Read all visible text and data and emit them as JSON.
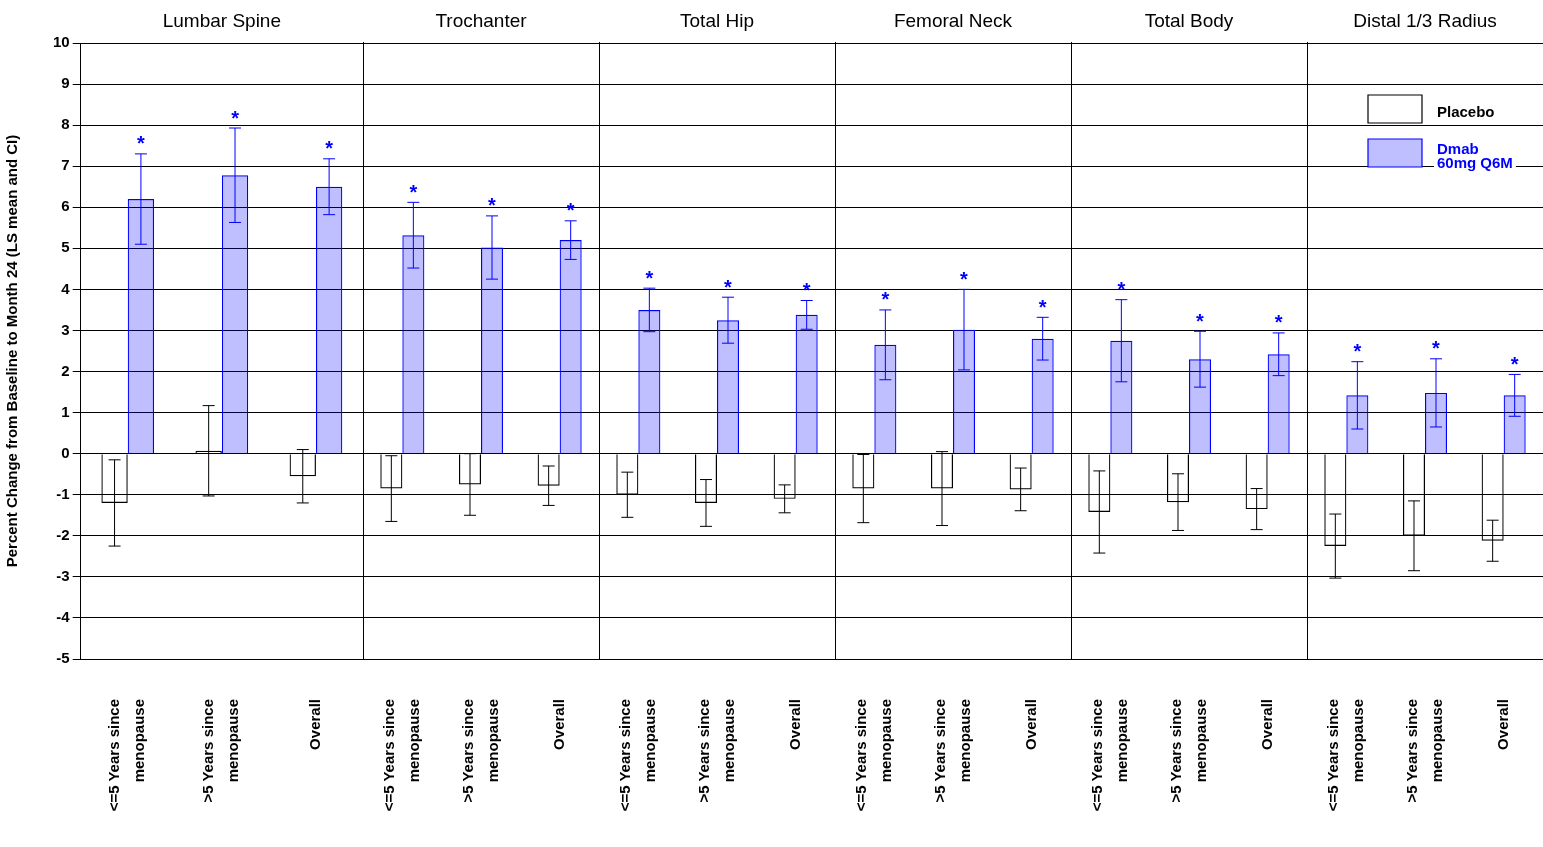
{
  "chart_data": [
    {
      "type": "bar",
      "title": "Lumbar Spine",
      "ylabel": "Percent Change from Baseline to Month 24 (LS mean and CI)",
      "categories": [
        "<=5 Years since menopause",
        ">5 Years since menopause",
        "Overall"
      ],
      "ylim": [
        -5,
        10
      ],
      "yticks": [
        -5,
        -4,
        -3,
        -2,
        -1,
        0,
        1,
        2,
        3,
        4,
        5,
        6,
        7,
        8,
        9,
        10
      ],
      "grid": "y",
      "series": [
        {
          "color": "#000000",
          "values": [
            -1.2,
            0.07,
            -0.55
          ],
          "errors": [
            1.05,
            1.1,
            0.65
          ]
        },
        {
          "color": "#0000ff",
          "values": [
            6.2,
            6.78,
            6.5
          ],
          "errors": [
            1.1,
            1.15,
            0.68
          ],
          "value_labels": [
            "*",
            "*",
            "*"
          ]
        }
      ]
    },
    {
      "type": "bar",
      "title": "Trochanter",
      "categories": [
        "<=5 Years since menopause",
        ">5 Years since menopause",
        "Overall"
      ],
      "ylim": [
        -5,
        10
      ],
      "yticks": [
        -5,
        -4,
        -3,
        -2,
        -1,
        0,
        1,
        2,
        3,
        4,
        5,
        6,
        7,
        8,
        9,
        10
      ],
      "grid": "y",
      "tick_labels": "x",
      "series": [
        {
          "color": "#000000",
          "values": [
            -0.85,
            -0.75,
            -0.78
          ],
          "errors": [
            0.8,
            0.75,
            0.48
          ]
        },
        {
          "color": "#0000ff",
          "values": [
            5.32,
            5.02,
            5.2
          ],
          "errors": [
            0.8,
            0.77,
            0.47
          ],
          "value_labels": [
            "*",
            "*",
            "*"
          ]
        }
      ]
    },
    {
      "type": "bar",
      "title": "Total Hip",
      "categories": [
        "<=5 Years since menopause",
        ">5 Years since menopause",
        "Overall"
      ],
      "ylim": [
        -5,
        10
      ],
      "yticks": [
        -5,
        -4,
        -3,
        -2,
        -1,
        0,
        1,
        2,
        3,
        4,
        5,
        6,
        7,
        8,
        9,
        10
      ],
      "grid": "y",
      "tick_labels": "x",
      "series": [
        {
          "color": "#000000",
          "values": [
            -1.0,
            -1.2,
            -1.1
          ],
          "errors": [
            0.55,
            0.57,
            0.34
          ]
        },
        {
          "color": "#0000ff",
          "values": [
            3.5,
            3.25,
            3.38
          ],
          "errors": [
            0.53,
            0.56,
            0.35
          ],
          "value_labels": [
            "*",
            "*",
            "*"
          ]
        }
      ]
    },
    {
      "type": "bar",
      "title": "Femoral Neck",
      "categories": [
        "<=5 Years since menopause",
        ">5 Years since menopause",
        "Overall"
      ],
      "ylim": [
        -5,
        10
      ],
      "yticks": [
        -5,
        -4,
        -3,
        -2,
        -1,
        0,
        1,
        2,
        3,
        4,
        5,
        6,
        7,
        8,
        9,
        10
      ],
      "grid": "y",
      "tick_labels": "x",
      "series": [
        {
          "color": "#000000",
          "values": [
            -0.85,
            -0.85,
            -0.87
          ],
          "errors": [
            0.83,
            0.9,
            0.52
          ]
        },
        {
          "color": "#0000ff",
          "values": [
            2.65,
            3.02,
            2.8
          ],
          "errors": [
            0.85,
            0.98,
            0.52
          ],
          "value_labels": [
            "*",
            "*",
            "*"
          ]
        }
      ]
    },
    {
      "type": "bar",
      "title": "Total Body",
      "categories": [
        "<=5 Years since menopause",
        ">5 Years since menopause",
        "Overall"
      ],
      "ylim": [
        -5,
        10
      ],
      "yticks": [
        -5,
        -4,
        -3,
        -2,
        -1,
        0,
        1,
        2,
        3,
        4,
        5,
        6,
        7,
        8,
        9,
        10
      ],
      "grid": "y",
      "tick_labels": "x",
      "series": [
        {
          "color": "#000000",
          "values": [
            -1.42,
            -1.18,
            -1.35
          ],
          "errors": [
            1.0,
            0.69,
            0.5
          ]
        },
        {
          "color": "#0000ff",
          "values": [
            2.75,
            2.3,
            2.42
          ],
          "errors": [
            1.0,
            0.68,
            0.52
          ],
          "value_labels": [
            "*",
            "*",
            "*"
          ]
        }
      ]
    },
    {
      "type": "bar",
      "title": "Distal 1/3 Radius",
      "categories": [
        "<=5 Years since menopause",
        ">5 Years since menopause",
        "Overall"
      ],
      "ylim": [
        -5,
        10
      ],
      "yticks": [
        -5,
        -4,
        -3,
        -2,
        -1,
        0,
        1,
        2,
        3,
        4,
        5,
        6,
        7,
        8,
        9,
        10
      ],
      "grid": "y",
      "tick_labels": "x",
      "legend": "top right",
      "series": [
        {
          "name": "Placebo",
          "color": "#000000",
          "values": [
            -2.25,
            -2.0,
            -2.12
          ],
          "errors": [
            0.78,
            0.85,
            0.5
          ]
        },
        {
          "name": "Dmab 60mg Q6M",
          "color": "#0000ff",
          "values": [
            1.42,
            1.48,
            1.42
          ],
          "errors": [
            0.82,
            0.83,
            0.51
          ],
          "value_labels": [
            "*",
            "*",
            "*"
          ]
        }
      ]
    }
  ]
}
